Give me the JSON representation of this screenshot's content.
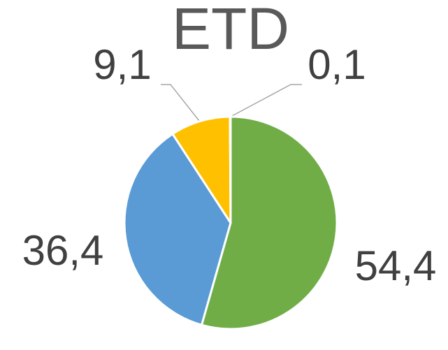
{
  "chart_data": {
    "type": "pie",
    "title": "ETD",
    "values": [
      54.4,
      36.4,
      9.1,
      0.1
    ],
    "value_labels": [
      "54,4",
      "36,4",
      "9,1",
      "0,1"
    ],
    "colors": [
      "#70ad47",
      "#5b9bd5",
      "#ffc000",
      "#ed7d31"
    ]
  }
}
